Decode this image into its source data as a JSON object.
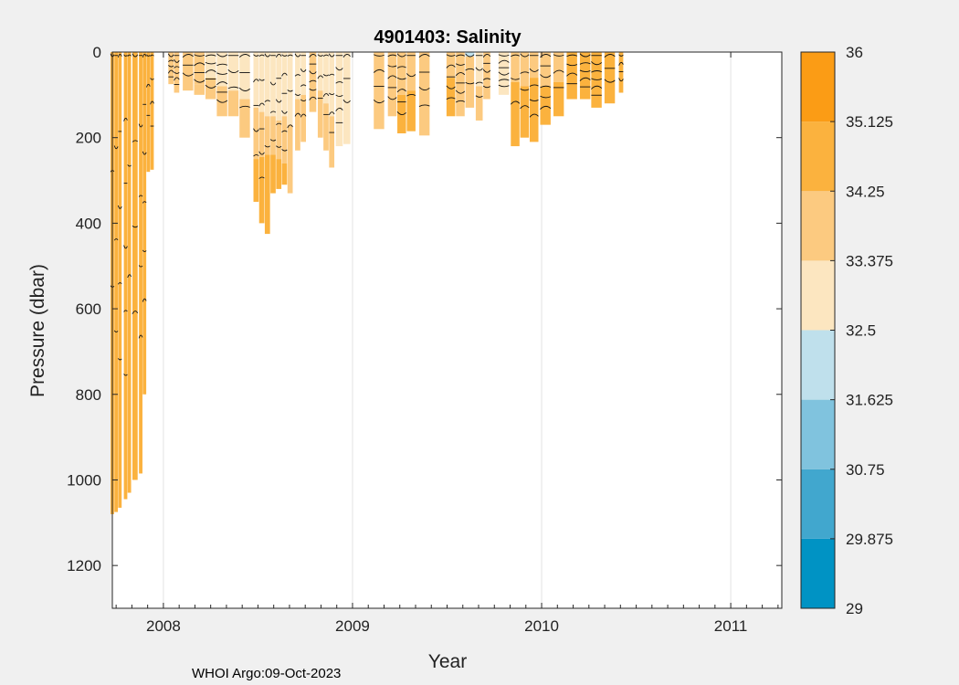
{
  "chart_data": {
    "type": "heatmap",
    "title": "4901403:  Salinity",
    "xlabel": "Year",
    "ylabel": "Pressure (dbar)",
    "footer": "WHOI Argo:09-Oct-2023",
    "x_ticks": [
      "2008",
      "2009",
      "2010",
      "2011"
    ],
    "x_tick_values": [
      2008.0,
      2009.0,
      2010.0,
      2011.0
    ],
    "xlim": [
      2007.73,
      2011.27
    ],
    "y_ticks": [
      "0",
      "200",
      "400",
      "600",
      "800",
      "1000",
      "1200"
    ],
    "y_tick_values": [
      0,
      200,
      400,
      600,
      800,
      1000,
      1200
    ],
    "ylim": [
      0,
      1300
    ],
    "y_reversed": true,
    "grid": "vertical",
    "colorbar": {
      "position": "right",
      "tick_labels": [
        "36",
        "35.125",
        "34.25",
        "33.375",
        "32.5",
        "31.625",
        "30.75",
        "29.875",
        "29"
      ],
      "bins": [
        {
          "low": 29.0,
          "high": 29.875,
          "color": "#0093c4"
        },
        {
          "low": 29.875,
          "high": 30.75,
          "color": "#41a7ce"
        },
        {
          "low": 30.75,
          "high": 31.625,
          "color": "#80c3de"
        },
        {
          "low": 31.625,
          "high": 32.5,
          "color": "#bfe0ec"
        },
        {
          "low": 32.5,
          "high": 33.375,
          "color": "#fce6c0"
        },
        {
          "low": 33.375,
          "high": 34.25,
          "color": "#fcca80"
        },
        {
          "low": 34.25,
          "high": 35.125,
          "color": "#fbb23e"
        },
        {
          "low": 35.125,
          "high": 36.0,
          "color": "#fb9c15"
        }
      ]
    },
    "profiles": [
      {
        "x": 2007.73,
        "max_p": 1080,
        "layers": [
          {
            "p": 0,
            "s": 34.6
          }
        ]
      },
      {
        "x": 2007.75,
        "max_p": 1075,
        "layers": [
          {
            "p": 0,
            "s": 34.6
          }
        ]
      },
      {
        "x": 2007.77,
        "max_p": 1065,
        "layers": [
          {
            "p": 0,
            "s": 34.6
          }
        ]
      },
      {
        "x": 2007.8,
        "max_p": 1045,
        "layers": [
          {
            "p": 0,
            "s": 34.6
          }
        ]
      },
      {
        "x": 2007.82,
        "max_p": 1030,
        "layers": [
          {
            "p": 0,
            "s": 34.6
          }
        ]
      },
      {
        "x": 2007.85,
        "max_p": 1000,
        "layers": [
          {
            "p": 0,
            "s": 34.6
          }
        ]
      },
      {
        "x": 2007.88,
        "max_p": 985,
        "layers": [
          {
            "p": 0,
            "s": 34.6
          }
        ]
      },
      {
        "x": 2007.9,
        "max_p": 800,
        "layers": [
          {
            "p": 0,
            "s": 34.6
          }
        ]
      },
      {
        "x": 2007.92,
        "max_p": 280,
        "layers": [
          {
            "p": 0,
            "s": 34.6
          }
        ]
      },
      {
        "x": 2007.94,
        "max_p": 275,
        "layers": [
          {
            "p": 0,
            "s": 34.6
          }
        ]
      },
      {
        "x": 2008.04,
        "max_p": 75,
        "layers": [
          {
            "p": 0,
            "s": 34.0
          }
        ]
      },
      {
        "x": 2008.07,
        "max_p": 95,
        "layers": [
          {
            "p": 0,
            "s": 33.9
          }
        ]
      },
      {
        "x": 2008.13,
        "max_p": 90,
        "layers": [
          {
            "p": 0,
            "s": 33.9
          }
        ]
      },
      {
        "x": 2008.19,
        "max_p": 100,
        "layers": [
          {
            "p": 0,
            "s": 33.6
          },
          {
            "p": 75,
            "s": 33.9
          }
        ]
      },
      {
        "x": 2008.25,
        "max_p": 110,
        "layers": [
          {
            "p": 0,
            "s": 33.2
          },
          {
            "p": 60,
            "s": 33.9
          }
        ]
      },
      {
        "x": 2008.31,
        "max_p": 150,
        "layers": [
          {
            "p": 0,
            "s": 33.1
          },
          {
            "p": 80,
            "s": 33.9
          }
        ]
      },
      {
        "x": 2008.37,
        "max_p": 150,
        "layers": [
          {
            "p": 0,
            "s": 33.2
          },
          {
            "p": 90,
            "s": 33.9
          }
        ]
      },
      {
        "x": 2008.43,
        "max_p": 200,
        "layers": [
          {
            "p": 0,
            "s": 33.1
          },
          {
            "p": 110,
            "s": 33.9
          }
        ]
      },
      {
        "x": 2008.49,
        "max_p": 350,
        "layers": [
          {
            "p": 0,
            "s": 33.1
          },
          {
            "p": 130,
            "s": 33.9
          },
          {
            "p": 250,
            "s": 34.6
          }
        ]
      },
      {
        "x": 2008.52,
        "max_p": 400,
        "layers": [
          {
            "p": 0,
            "s": 33.1
          },
          {
            "p": 140,
            "s": 33.9
          },
          {
            "p": 245,
            "s": 34.6
          }
        ]
      },
      {
        "x": 2008.55,
        "max_p": 425,
        "layers": [
          {
            "p": 0,
            "s": 33.0
          },
          {
            "p": 150,
            "s": 33.9
          },
          {
            "p": 240,
            "s": 34.6
          }
        ]
      },
      {
        "x": 2008.58,
        "max_p": 330,
        "layers": [
          {
            "p": 0,
            "s": 33.0
          },
          {
            "p": 150,
            "s": 33.9
          },
          {
            "p": 240,
            "s": 34.6
          }
        ]
      },
      {
        "x": 2008.61,
        "max_p": 320,
        "layers": [
          {
            "p": 0,
            "s": 33.1
          },
          {
            "p": 160,
            "s": 33.9
          },
          {
            "p": 250,
            "s": 34.6
          }
        ]
      },
      {
        "x": 2008.64,
        "max_p": 310,
        "layers": [
          {
            "p": 0,
            "s": 33.2
          },
          {
            "p": 150,
            "s": 33.9
          },
          {
            "p": 260,
            "s": 34.6
          }
        ]
      },
      {
        "x": 2008.67,
        "max_p": 330,
        "layers": [
          {
            "p": 0,
            "s": 33.0
          },
          {
            "p": 170,
            "s": 33.9
          }
        ]
      },
      {
        "x": 2008.71,
        "max_p": 230,
        "layers": [
          {
            "p": 0,
            "s": 33.0
          },
          {
            "p": 110,
            "s": 33.9
          }
        ]
      },
      {
        "x": 2008.74,
        "max_p": 210,
        "layers": [
          {
            "p": 0,
            "s": 33.1
          },
          {
            "p": 100,
            "s": 33.9
          }
        ]
      },
      {
        "x": 2008.79,
        "max_p": 140,
        "layers": [
          {
            "p": 0,
            "s": 33.4
          },
          {
            "p": 60,
            "s": 33.9
          }
        ]
      },
      {
        "x": 2008.83,
        "max_p": 200,
        "layers": [
          {
            "p": 0,
            "s": 33.3
          },
          {
            "p": 90,
            "s": 33.9
          }
        ]
      },
      {
        "x": 2008.86,
        "max_p": 230,
        "layers": [
          {
            "p": 0,
            "s": 33.2
          },
          {
            "p": 120,
            "s": 33.9
          }
        ]
      },
      {
        "x": 2008.89,
        "max_p": 270,
        "layers": [
          {
            "p": 0,
            "s": 33.0
          },
          {
            "p": 150,
            "s": 33.9
          }
        ]
      },
      {
        "x": 2008.93,
        "max_p": 220,
        "layers": [
          {
            "p": 0,
            "s": 33.0
          }
        ]
      },
      {
        "x": 2008.97,
        "max_p": 215,
        "layers": [
          {
            "p": 0,
            "s": 33.0
          }
        ]
      },
      {
        "x": 2009.14,
        "max_p": 180,
        "layers": [
          {
            "p": 0,
            "s": 33.9
          }
        ]
      },
      {
        "x": 2009.21,
        "max_p": 150,
        "layers": [
          {
            "p": 0,
            "s": 33.6
          },
          {
            "p": 60,
            "s": 33.9
          }
        ]
      },
      {
        "x": 2009.26,
        "max_p": 190,
        "layers": [
          {
            "p": 0,
            "s": 33.9
          },
          {
            "p": 100,
            "s": 34.6
          }
        ]
      },
      {
        "x": 2009.31,
        "max_p": 185,
        "layers": [
          {
            "p": 0,
            "s": 33.9
          },
          {
            "p": 90,
            "s": 34.6
          }
        ]
      },
      {
        "x": 2009.38,
        "max_p": 195,
        "layers": [
          {
            "p": 0,
            "s": 33.9
          }
        ]
      },
      {
        "x": 2009.52,
        "max_p": 150,
        "layers": [
          {
            "p": 0,
            "s": 33.9
          },
          {
            "p": 60,
            "s": 34.6
          }
        ]
      },
      {
        "x": 2009.57,
        "max_p": 150,
        "layers": [
          {
            "p": 0,
            "s": 34.0
          }
        ]
      },
      {
        "x": 2009.62,
        "max_p": 130,
        "layers": [
          {
            "p": 0,
            "s": 32.0
          },
          {
            "p": 10,
            "s": 33.9
          }
        ]
      },
      {
        "x": 2009.67,
        "max_p": 160,
        "layers": [
          {
            "p": 0,
            "s": 33.1
          },
          {
            "p": 80,
            "s": 33.9
          }
        ]
      },
      {
        "x": 2009.71,
        "max_p": 110,
        "layers": [
          {
            "p": 0,
            "s": 33.4
          }
        ]
      },
      {
        "x": 2009.8,
        "max_p": 100,
        "layers": [
          {
            "p": 0,
            "s": 32.9
          }
        ]
      },
      {
        "x": 2009.86,
        "max_p": 220,
        "layers": [
          {
            "p": 0,
            "s": 33.9
          },
          {
            "p": 70,
            "s": 34.6
          }
        ]
      },
      {
        "x": 2009.91,
        "max_p": 200,
        "layers": [
          {
            "p": 0,
            "s": 33.9
          },
          {
            "p": 80,
            "s": 34.6
          }
        ]
      },
      {
        "x": 2009.96,
        "max_p": 210,
        "layers": [
          {
            "p": 0,
            "s": 33.9
          },
          {
            "p": 60,
            "s": 34.6
          }
        ]
      },
      {
        "x": 2010.02,
        "max_p": 170,
        "layers": [
          {
            "p": 0,
            "s": 33.9
          },
          {
            "p": 80,
            "s": 34.6
          }
        ]
      },
      {
        "x": 2010.09,
        "max_p": 150,
        "layers": [
          {
            "p": 0,
            "s": 34.0
          },
          {
            "p": 70,
            "s": 34.6
          }
        ]
      },
      {
        "x": 2010.16,
        "max_p": 110,
        "layers": [
          {
            "p": 0,
            "s": 34.6
          }
        ]
      },
      {
        "x": 2010.23,
        "max_p": 110,
        "layers": [
          {
            "p": 0,
            "s": 34.6
          }
        ]
      },
      {
        "x": 2010.29,
        "max_p": 130,
        "layers": [
          {
            "p": 0,
            "s": 34.6
          }
        ]
      },
      {
        "x": 2010.36,
        "max_p": 120,
        "layers": [
          {
            "p": 0,
            "s": 34.6
          }
        ]
      },
      {
        "x": 2010.42,
        "max_p": 95,
        "layers": [
          {
            "p": 0,
            "s": 34.6
          }
        ]
      }
    ]
  }
}
